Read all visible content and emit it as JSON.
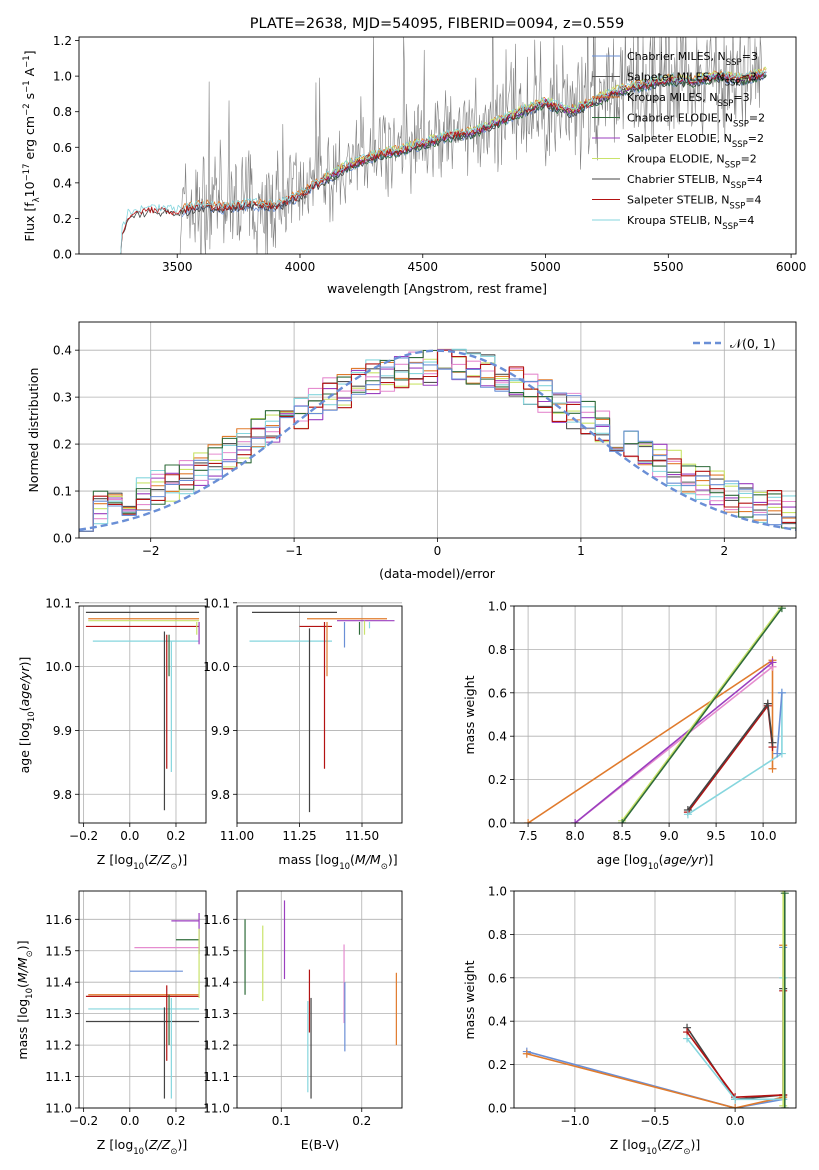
{
  "figure_title": "PLATE=2638, MJD=54095, FIBERID=0094, z=0.559",
  "colors": {
    "chabrier_miles": "#6a8fd6",
    "salpeter_miles": "#555555",
    "kroupa_miles": "#e07b2d",
    "chabrier_elodie": "#2f6b3a",
    "salpeter_elodie": "#9b3fbf",
    "kroupa_elodie": "#c9e36a",
    "chabrier_stelib": "#444444",
    "salpeter_stelib": "#b31212",
    "kroupa_stelib": "#86d6de",
    "data": "#808080",
    "pink": "#e58ccf",
    "normal": "#6a8fd6"
  },
  "chart_data": [
    {
      "type": "line",
      "title": "PLATE=2638, MJD=54095, FIBERID=0094, z=0.559",
      "xlabel": "wavelength [Angstrom, rest frame]",
      "ylabel": "Flux [f_λ 10^-17 erg cm^-2 s^-1 A^-1]",
      "xlim": [
        3100,
        6020
      ],
      "ylim": [
        0,
        1.22
      ],
      "xticks": [
        "3500",
        "4000",
        "4500",
        "5000",
        "5500",
        "6000"
      ],
      "yticks": [
        "0.0",
        "0.2",
        "0.4",
        "0.6",
        "0.8",
        "1.0",
        "1.2"
      ],
      "legend_position": "top-right",
      "legend": [
        "Chabrier MILES, N_SSP=3",
        "Salpeter MILES, N_SSP=3",
        "Kroupa MILES, N_SSP=3",
        "Chabrier ELODIE, N_SSP=2",
        "Salpeter ELODIE, N_SSP=2",
        "Kroupa ELODIE, N_SSP=2",
        "Chabrier STELIB, N_SSP=4",
        "Salpeter STELIB, N_SSP=4",
        "Kroupa STELIB, N_SSP=4"
      ],
      "model_continuum": {
        "x": [
          3270,
          3300,
          3400,
          3500,
          3600,
          3700,
          3800,
          3900,
          4000,
          4100,
          4200,
          4300,
          4400,
          4500,
          4600,
          4700,
          4800,
          4900,
          5000,
          5100,
          5200,
          5300,
          5400,
          5500,
          5600,
          5700,
          5800,
          5900
        ],
        "y": [
          0.1,
          0.22,
          0.25,
          0.24,
          0.27,
          0.26,
          0.28,
          0.27,
          0.33,
          0.42,
          0.5,
          0.55,
          0.58,
          0.62,
          0.66,
          0.68,
          0.74,
          0.8,
          0.85,
          0.8,
          0.86,
          0.92,
          0.95,
          0.98,
          0.97,
          1.0,
          0.98,
          1.02
        ]
      },
      "data_spectrum": {
        "x_range": [
          3510,
          5880
        ],
        "noise": "high"
      }
    },
    {
      "type": "line",
      "xlabel": "(data-model)/error",
      "ylabel": "Normed distribution",
      "xlim": [
        -2.5,
        2.5
      ],
      "ylim": [
        0,
        0.46
      ],
      "xticks": [
        "−2",
        "−1",
        "0",
        "1",
        "2"
      ],
      "yticks": [
        "0.0",
        "0.1",
        "0.2",
        "0.3",
        "0.4"
      ],
      "legend_position": "top-right",
      "legend": [
        "𝒩(0, 1)"
      ],
      "histogram_bins": 50,
      "histogram_series": 9
    },
    {
      "type": "scatter",
      "xlabel": "Z [log10(Z/Z⊙)]",
      "ylabel": "age  [log10(age/yr)]",
      "xlim": [
        -0.22,
        0.33
      ],
      "ylim": [
        9.755,
        10.095
      ],
      "xticks": [
        "−0.2",
        "0.0",
        "0.2"
      ],
      "yticks": [
        "9.8",
        "9.9",
        "10.0",
        "10.1"
      ],
      "segments": [
        {
          "c": "kroupa_miles",
          "x": [
            -0.18,
            0.3
          ],
          "y": [
            10.075,
            10.075
          ]
        },
        {
          "c": "kroupa_elodie",
          "x": [
            -0.18,
            0.3
          ],
          "y": [
            10.072,
            10.072
          ]
        },
        {
          "c": "kroupa_stelib",
          "x": [
            -0.16,
            0.3
          ],
          "y": [
            10.04,
            10.04
          ]
        },
        {
          "c": "chabrier_stelib",
          "x": [
            -0.19,
            0.3
          ],
          "y": [
            10.085,
            10.085
          ]
        },
        {
          "c": "salpeter_stelib",
          "x": [
            -0.19,
            0.3
          ],
          "y": [
            10.063,
            10.063
          ]
        },
        {
          "c": "chabrier_stelib",
          "x": [
            0.15,
            0.15
          ],
          "y": [
            9.775,
            10.055
          ]
        },
        {
          "c": "salpeter_stelib",
          "x": [
            0.16,
            0.16
          ],
          "y": [
            9.84,
            10.05
          ]
        },
        {
          "c": "kroupa_stelib",
          "x": [
            0.18,
            0.18
          ],
          "y": [
            9.835,
            10.04
          ]
        },
        {
          "c": "chabrier_elodie",
          "x": [
            0.17,
            0.17
          ],
          "y": [
            9.985,
            10.05
          ]
        },
        {
          "c": "salpeter_elodie",
          "x": [
            0.3,
            0.3
          ],
          "y": [
            10.035,
            10.07
          ]
        },
        {
          "c": "kroupa_elodie",
          "x": [
            0.29,
            0.29
          ],
          "y": [
            10.05,
            10.07
          ]
        }
      ]
    },
    {
      "type": "scatter",
      "xlabel": "mass [log10(M/M⊙)]",
      "ylabel": "",
      "xlim": [
        11.0,
        11.66
      ],
      "ylim": [
        9.755,
        10.095
      ],
      "xticks": [
        "11.00",
        "11.25",
        "11.50"
      ],
      "yticks": [
        "9.8",
        "9.9",
        "10.0",
        "10.1"
      ],
      "segments": [
        {
          "c": "kroupa_miles",
          "x": [
            11.28,
            11.6
          ],
          "y": [
            10.075,
            10.075
          ]
        },
        {
          "c": "salpeter_elodie",
          "x": [
            11.4,
            11.63
          ],
          "y": [
            10.072,
            10.072
          ]
        },
        {
          "c": "kroupa_stelib",
          "x": [
            11.05,
            11.38
          ],
          "y": [
            10.04,
            10.04
          ]
        },
        {
          "c": "chabrier_stelib",
          "x": [
            11.06,
            11.4
          ],
          "y": [
            10.085,
            10.085
          ]
        },
        {
          "c": "salpeter_stelib",
          "x": [
            11.25,
            11.38
          ],
          "y": [
            10.063,
            10.063
          ]
        },
        {
          "c": "chabrier_stelib",
          "x": [
            11.29,
            11.29
          ],
          "y": [
            9.772,
            10.06
          ]
        },
        {
          "c": "salpeter_stelib",
          "x": [
            11.35,
            11.35
          ],
          "y": [
            9.84,
            10.07
          ]
        },
        {
          "c": "kroupa_miles",
          "x": [
            11.36,
            11.36
          ],
          "y": [
            9.985,
            10.07
          ]
        },
        {
          "c": "chabrier_miles",
          "x": [
            11.43,
            11.43
          ],
          "y": [
            10.03,
            10.07
          ]
        },
        {
          "c": "chabrier_elodie",
          "x": [
            11.49,
            11.49
          ],
          "y": [
            10.05,
            10.07
          ]
        },
        {
          "c": "kroupa_elodie",
          "x": [
            11.51,
            11.51
          ],
          "y": [
            10.05,
            10.072
          ]
        },
        {
          "c": "kroupa_stelib",
          "x": [
            11.53,
            11.53
          ],
          "y": [
            10.06,
            10.07
          ]
        }
      ]
    },
    {
      "type": "line",
      "xlabel": "age  [log10(age/yr)]",
      "ylabel": "mass weight",
      "xlim": [
        7.35,
        10.35
      ],
      "ylim": [
        0,
        1.0
      ],
      "xticks": [
        "7.5",
        "8.0",
        "8.5",
        "9.0",
        "9.5",
        "10.0"
      ],
      "yticks": [
        "0.0",
        "0.2",
        "0.4",
        "0.6",
        "0.8",
        "1.0"
      ],
      "series": [
        {
          "c": "kroupa_miles",
          "x": [
            7.5,
            10.1,
            10.1
          ],
          "y": [
            0.0,
            0.75,
            0.25
          ]
        },
        {
          "c": "pink",
          "x": [
            8.0,
            10.1
          ],
          "y": [
            0.0,
            0.72
          ]
        },
        {
          "c": "salpeter_elodie",
          "x": [
            8.0,
            10.1
          ],
          "y": [
            0.0,
            0.74
          ]
        },
        {
          "c": "kroupa_elodie",
          "x": [
            8.5,
            10.2
          ],
          "y": [
            0.01,
            1.0
          ]
        },
        {
          "c": "chabrier_elodie",
          "x": [
            8.5,
            10.2
          ],
          "y": [
            0.0,
            0.99
          ]
        },
        {
          "c": "salpeter_stelib",
          "x": [
            9.2,
            10.05,
            10.1
          ],
          "y": [
            0.05,
            0.54,
            0.35
          ]
        },
        {
          "c": "chabrier_stelib",
          "x": [
            9.2,
            10.05,
            10.1
          ],
          "y": [
            0.06,
            0.55,
            0.37
          ]
        },
        {
          "c": "kroupa_stelib",
          "x": [
            9.2,
            10.2,
            10.2
          ],
          "y": [
            0.04,
            0.32,
            0.6
          ]
        },
        {
          "c": "chabrier_miles",
          "x": [
            10.15,
            10.2
          ],
          "y": [
            0.32,
            0.6
          ]
        }
      ]
    },
    {
      "type": "scatter",
      "xlabel": "Z [log10(Z/Z⊙)]",
      "ylabel": "mass [log10(M/M⊙)]",
      "xlim": [
        -0.22,
        0.33
      ],
      "ylim": [
        11.0,
        11.69
      ],
      "xticks": [
        "−0.2",
        "0.0",
        "0.2"
      ],
      "yticks": [
        "11.0",
        "11.1",
        "11.2",
        "11.3",
        "11.4",
        "11.5",
        "11.6"
      ],
      "segments": [
        {
          "c": "salpeter_elodie",
          "x": [
            0.18,
            0.3
          ],
          "y": [
            11.595,
            11.595
          ]
        },
        {
          "c": "chabrier_elodie",
          "x": [
            0.2,
            0.3
          ],
          "y": [
            11.535,
            11.535
          ]
        },
        {
          "c": "pink",
          "x": [
            0.02,
            0.3
          ],
          "y": [
            11.51,
            11.51
          ]
        },
        {
          "c": "chabrier_miles",
          "x": [
            0.0,
            0.23
          ],
          "y": [
            11.435,
            11.435
          ]
        },
        {
          "c": "kroupa_miles",
          "x": [
            -0.18,
            0.3
          ],
          "y": [
            11.36,
            11.36
          ]
        },
        {
          "c": "salpeter_stelib",
          "x": [
            -0.19,
            0.3
          ],
          "y": [
            11.355,
            11.355
          ]
        },
        {
          "c": "kroupa_stelib",
          "x": [
            -0.18,
            0.3
          ],
          "y": [
            11.315,
            11.315
          ]
        },
        {
          "c": "chabrier_stelib",
          "x": [
            -0.19,
            0.3
          ],
          "y": [
            11.275,
            11.275
          ]
        },
        {
          "c": "salpeter_elodie",
          "x": [
            0.3,
            0.3
          ],
          "y": [
            11.49,
            11.62
          ]
        },
        {
          "c": "kroupa_elodie",
          "x": [
            0.3,
            0.3
          ],
          "y": [
            11.35,
            11.57
          ]
        },
        {
          "c": "chabrier_stelib",
          "x": [
            0.15,
            0.15
          ],
          "y": [
            11.03,
            11.32
          ]
        },
        {
          "c": "salpeter_stelib",
          "x": [
            0.16,
            0.16
          ],
          "y": [
            11.15,
            11.39
          ]
        },
        {
          "c": "kroupa_stelib",
          "x": [
            0.18,
            0.18
          ],
          "y": [
            11.03,
            11.35
          ]
        },
        {
          "c": "chabrier_elodie",
          "x": [
            0.17,
            0.17
          ],
          "y": [
            11.2,
            11.36
          ]
        }
      ]
    },
    {
      "type": "scatter",
      "xlabel": "E(B-V)",
      "ylabel": "",
      "xlim": [
        0.045,
        0.25
      ],
      "ylim": [
        11.0,
        11.69
      ],
      "xticks": [
        "0.1",
        "0.2"
      ],
      "yticks": [
        "11.0",
        "11.1",
        "11.2",
        "11.3",
        "11.4",
        "11.5",
        "11.6"
      ],
      "segments": [
        {
          "c": "chabrier_elodie",
          "x": [
            0.055,
            0.055
          ],
          "y": [
            11.36,
            11.6
          ]
        },
        {
          "c": "kroupa_elodie",
          "x": [
            0.077,
            0.077
          ],
          "y": [
            11.34,
            11.58
          ]
        },
        {
          "c": "salpeter_elodie",
          "x": [
            0.104,
            0.104
          ],
          "y": [
            11.41,
            11.66
          ]
        },
        {
          "c": "salpeter_stelib",
          "x": [
            0.135,
            0.135
          ],
          "y": [
            11.24,
            11.44
          ]
        },
        {
          "c": "chabrier_stelib",
          "x": [
            0.137,
            0.137
          ],
          "y": [
            11.03,
            11.35
          ]
        },
        {
          "c": "kroupa_stelib",
          "x": [
            0.133,
            0.133
          ],
          "y": [
            11.05,
            11.34
          ]
        },
        {
          "c": "pink",
          "x": [
            0.178,
            0.178
          ],
          "y": [
            11.27,
            11.52
          ]
        },
        {
          "c": "chabrier_miles",
          "x": [
            0.179,
            0.179
          ],
          "y": [
            11.18,
            11.4
          ]
        },
        {
          "c": "kroupa_miles",
          "x": [
            0.243,
            0.243
          ],
          "y": [
            11.2,
            11.43
          ]
        }
      ]
    },
    {
      "type": "line",
      "xlabel": "Z [log10(Z/Z⊙)]",
      "ylabel": "mass weight",
      "xlim": [
        -1.38,
        0.38
      ],
      "ylim": [
        0,
        1.0
      ],
      "xticks": [
        "−1.0",
        "−0.5",
        "0.0"
      ],
      "yticks": [
        "0.0",
        "0.2",
        "0.4",
        "0.6",
        "0.8",
        "1.0"
      ],
      "series": [
        {
          "c": "chabrier_miles",
          "x": [
            -1.3,
            0.0,
            0.3,
            0.3
          ],
          "y": [
            0.26,
            0.0,
            0.04,
            0.74
          ]
        },
        {
          "c": "kroupa_miles",
          "x": [
            -1.3,
            0.0,
            0.3,
            0.3
          ],
          "y": [
            0.25,
            0.0,
            0.05,
            0.75
          ]
        },
        {
          "c": "chabrier_stelib",
          "x": [
            -0.3,
            0.0,
            0.3,
            0.3
          ],
          "y": [
            0.37,
            0.04,
            0.06,
            0.55
          ]
        },
        {
          "c": "salpeter_stelib",
          "x": [
            -0.3,
            0.0,
            0.3,
            0.3
          ],
          "y": [
            0.35,
            0.05,
            0.06,
            0.54
          ]
        },
        {
          "c": "kroupa_stelib",
          "x": [
            -0.3,
            0.0,
            0.3,
            0.3
          ],
          "y": [
            0.32,
            0.04,
            0.04,
            0.6
          ]
        },
        {
          "c": "kroupa_elodie",
          "x": [
            0.3,
            0.3
          ],
          "y": [
            0.01,
            1.0
          ]
        },
        {
          "c": "chabrier_elodie",
          "x": [
            0.31,
            0.31
          ],
          "y": [
            0.0,
            0.99
          ]
        }
      ]
    }
  ]
}
